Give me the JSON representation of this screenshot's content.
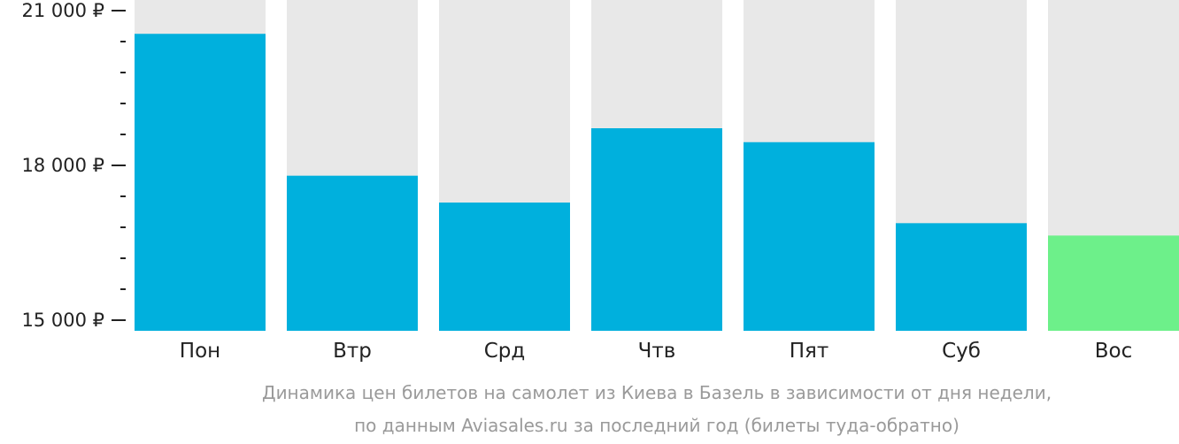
{
  "chart_data": {
    "type": "bar",
    "categories": [
      "Пон",
      "Втр",
      "Срд",
      "Чтв",
      "Пят",
      "Суб",
      "Вос"
    ],
    "values": [
      20550,
      17800,
      17280,
      18720,
      18450,
      16880,
      16640
    ],
    "ylim": [
      15000,
      21000
    ],
    "y_ticks": [
      {
        "value": 15000,
        "label": "15 000 ₽"
      },
      {
        "value": 18000,
        "label": "18 000 ₽"
      },
      {
        "value": 21000,
        "label": "21 000 ₽"
      }
    ],
    "minor_tick_step": 600,
    "grid": false,
    "legend": "none",
    "highlight_index": 6,
    "colors": {
      "bar": "#00b0dd",
      "highlight": "#6df08a",
      "background_column": "#e8e8e8",
      "axis": "#222222",
      "caption": "#9a9a9a"
    },
    "caption_lines": [
      "Динамика цен билетов на самолет из Киева в Базель в зависимости от дня недели,",
      "по данным Aviasales.ru за последний год (билеты туда-обратно)"
    ]
  }
}
